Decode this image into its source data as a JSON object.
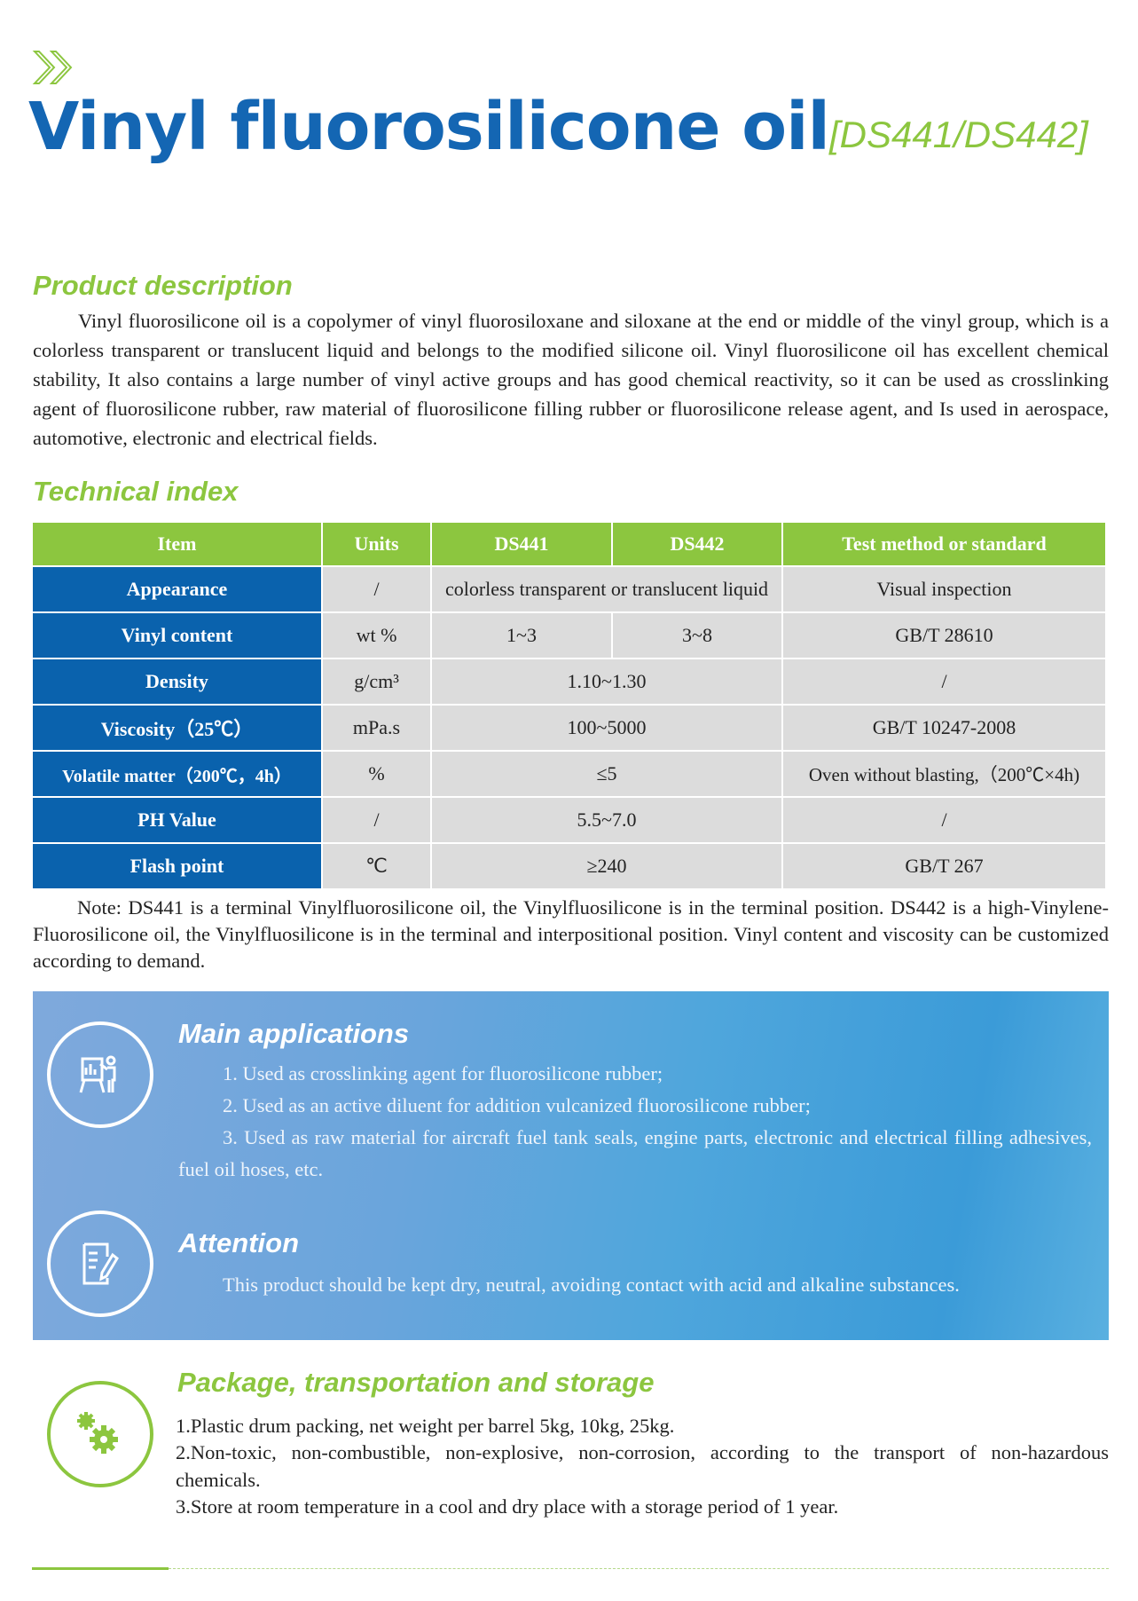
{
  "header": {
    "title": "Vinyl fluorosilicone oil",
    "code": "[DS441/DS442]"
  },
  "description": {
    "heading": "Product description",
    "text": "Vinyl fluorosilicone oil is a copolymer of vinyl fluorosiloxane and siloxane at the end or middle of the vinyl group, which is a colorless transparent or translucent liquid and belongs to the modified silicone oil. Vinyl fluorosilicone oil has excellent chemical stability, It also contains a large number of vinyl active groups and has good chemical reactivity, so it can be used as crosslinking agent of fluorosilicone rubber, raw material of fluorosilicone filling rubber or fluorosilicone release agent, and Is used in aerospace, automotive, electronic and electrical fields."
  },
  "technical": {
    "heading": "Technical index",
    "columns": [
      "Item",
      "Units",
      "DS441",
      "DS442",
      "Test method or standard"
    ],
    "rows": [
      {
        "item": "Appearance",
        "units": "/",
        "value": "colorless transparent or translucent liquid",
        "method": "Visual inspection"
      },
      {
        "item": "Vinyl content",
        "units": "wt %",
        "ds441": "1~3",
        "ds442": "3~8",
        "method": "GB/T 28610"
      },
      {
        "item": "Density",
        "units": "g/cm³",
        "value": "1.10~1.30",
        "method": "/"
      },
      {
        "item": "Viscosity（25℃）",
        "units": "mPa.s",
        "value": "100~5000",
        "method": "GB/T 10247-2008"
      },
      {
        "item": "Volatile matter（200℃，4h）",
        "units": "%",
        "value": "≤5",
        "method": "Oven without blasting,（200℃×4h)"
      },
      {
        "item": "PH Value",
        "units": "/",
        "value": "5.5~7.0",
        "method": "/"
      },
      {
        "item": "Flash point",
        "units": "℃",
        "value": "≥240",
        "method": "GB/T 267"
      }
    ],
    "note": "Note: DS441 is a terminal Vinylfluorosilicone oil, the Vinylfluosilicone is in the terminal position. DS442 is a high-Vinylene-Fluorosilicone oil, the Vinylfluosilicone is in the terminal and interpositional position. Vinyl content and viscosity can be customized according to demand."
  },
  "applications": {
    "heading": "Main applications",
    "items": [
      "1. Used as crosslinking agent for fluorosilicone rubber;",
      "2. Used as an active diluent for addition vulcanized fluorosilicone rubber;",
      "3. Used as raw material for aircraft fuel tank seals, engine parts, electronic and electrical filling adhesives, fuel oil hoses, etc."
    ],
    "icon": "presentation-icon"
  },
  "attention": {
    "heading": "Attention",
    "text": "This product should be kept dry, neutral, avoiding contact with acid and alkaline substances.",
    "icon": "document-edit-icon"
  },
  "package": {
    "heading": "Package, transportation and storage",
    "items": [
      "1.Plastic drum packing, net weight per barrel 5kg, 10kg, 25kg.",
      "2.Non-toxic, non-combustible, non-explosive, non-corrosion, according to the transport of non-hazardous chemicals.",
      "3.Store at room temperature in a cool and dry place with a storage period of 1 year."
    ],
    "icon": "gears-icon"
  },
  "colors": {
    "blue": "#1466b3",
    "green": "#8cc63f",
    "table_label": "#0a62ad",
    "table_cell": "#dcdcdc"
  }
}
